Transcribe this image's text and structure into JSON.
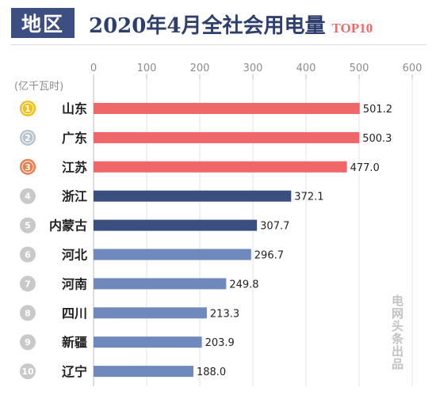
{
  "header": {
    "badge": "地区",
    "title": "2020年4月全社会用电量",
    "title_tag": "TOP10",
    "watermark": "电网头条出品"
  },
  "colors": {
    "badge_bg": "#3d4f82",
    "title": "#2e3f6e",
    "title_tag": "#ee6a6a",
    "bar_top3": "#f0676a",
    "bar_dark": "#3a4f80",
    "bar_light": "#6f89bd",
    "rank_gold": "#f2c01d",
    "rank_silver": "#b8c2cc",
    "rank_bronze": "#ec7d4b",
    "rank_default": "#c9c9c9"
  },
  "chart_data": {
    "type": "bar",
    "orientation": "horizontal",
    "title": "2020年4月全社会用电量",
    "ylabel": "(亿千瓦时)",
    "xlim": [
      0,
      600
    ],
    "xticks": [
      0,
      100,
      200,
      300,
      400,
      500,
      600
    ],
    "grid": true,
    "categories": [
      "山东",
      "广东",
      "江苏",
      "浙江",
      "内蒙古",
      "河北",
      "河南",
      "四川",
      "新疆",
      "辽宁"
    ],
    "ranks": [
      "1",
      "2",
      "3",
      "4",
      "5",
      "6",
      "7",
      "8",
      "9",
      "10"
    ],
    "values": [
      501.2,
      500.3,
      477.0,
      372.1,
      307.7,
      296.7,
      249.8,
      213.3,
      203.9,
      188.0
    ],
    "value_labels": [
      "501.2",
      "500.3",
      "477.0",
      "372.1",
      "307.7",
      "296.7",
      "249.8",
      "213.3",
      "203.9",
      "188.0"
    ],
    "bar_color_groups": [
      "top3",
      "top3",
      "top3",
      "dark",
      "dark",
      "light",
      "light",
      "light",
      "light",
      "light"
    ]
  }
}
